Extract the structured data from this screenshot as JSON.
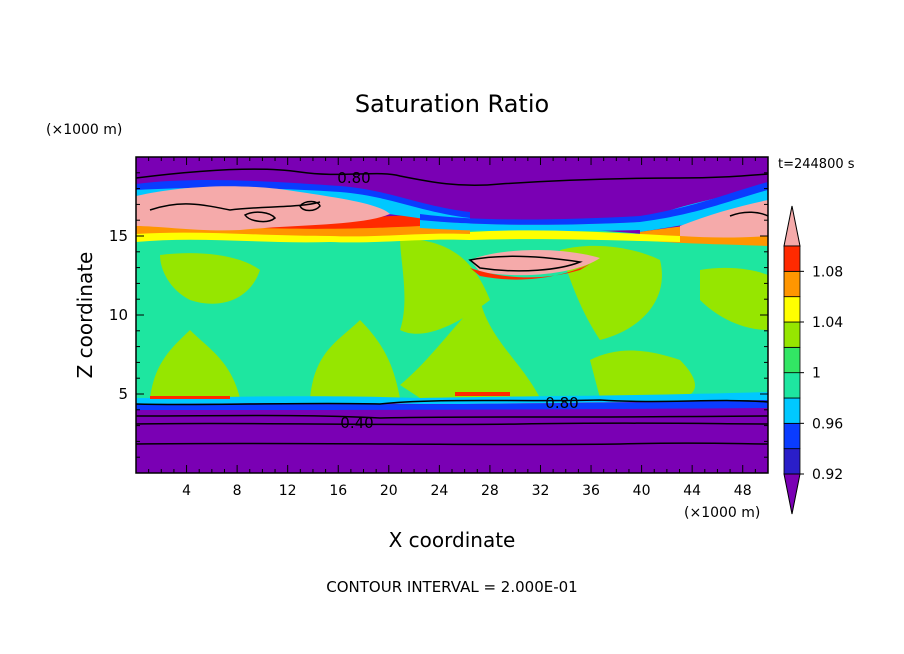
{
  "chart_data": {
    "type": "heatmap",
    "title": "Saturation Ratio",
    "xlabel": "X coordinate",
    "ylabel": "Z coordinate",
    "x_unit": "(×1000 m)",
    "y_unit": "(×1000 m)",
    "time_label": "t=244800 s",
    "footer": "CONTOUR INTERVAL = 2.000E-01",
    "xlim": [
      0,
      50
    ],
    "ylim": [
      0,
      20
    ],
    "xticks": [
      4,
      8,
      12,
      16,
      20,
      24,
      28,
      32,
      36,
      40,
      44,
      48
    ],
    "yticks": [
      5,
      10,
      15
    ],
    "contour_labels": [
      {
        "text": "0.80",
        "x": 17.2,
        "z": 18.9
      },
      {
        "text": "0.80",
        "x": 33.0,
        "z": 4.4
      },
      {
        "text": "0.40",
        "x": 17.5,
        "z": 3.3
      }
    ],
    "colorbar": {
      "levels": [
        "<0.92",
        "0.92",
        "0.94",
        "0.96",
        "0.98",
        "1",
        "1.02",
        "1.04",
        "1.06",
        "1.08",
        ">1.10"
      ],
      "colors": [
        "#7a00b4",
        "#2a1ec8",
        "#0a3cff",
        "#00c8ff",
        "#1ee6a0",
        "#32e664",
        "#96e600",
        "#ffff00",
        "#ff9600",
        "#ff2a00",
        "#f5aaaa"
      ],
      "tick_labels": [
        "0.92",
        "0.96",
        "1",
        "1.04",
        "1.08"
      ]
    }
  }
}
